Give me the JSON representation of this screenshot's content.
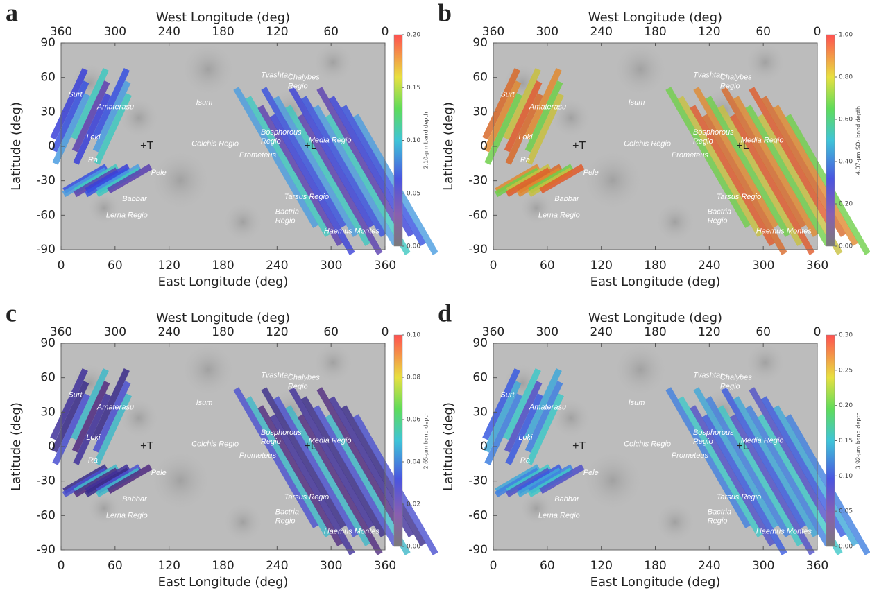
{
  "panels": [
    {
      "label": "a",
      "top_axis_label": "West Longitude (deg)",
      "bottom_axis_label": "East Longitude (deg)",
      "y_axis_label": "Latitude (deg)",
      "xlim": [
        0,
        360
      ],
      "xticks": [
        0,
        60,
        120,
        180,
        240,
        300,
        360
      ],
      "top_xlim": [
        360,
        0
      ],
      "top_xticks": [
        360,
        300,
        240,
        180,
        120,
        60,
        0
      ],
      "ylim": [
        -90,
        90
      ],
      "yticks": [
        -90,
        -60,
        -30,
        0,
        30,
        60,
        90
      ],
      "colorbar": {
        "label": "2.10-μm band depth",
        "lim": [
          0,
          0.2
        ],
        "ticks": [
          {
            "value": 0,
            "label": "0.00"
          },
          {
            "value": 0.05,
            "label": "0.05"
          },
          {
            "value": 0.1,
            "label": "0.10"
          },
          {
            "value": 0.15,
            "label": "0.15"
          },
          {
            "value": 0.2,
            "label": "0.20"
          }
        ]
      }
    },
    {
      "label": "b",
      "top_axis_label": "West Longitude (deg)",
      "bottom_axis_label": "East Longitude (deg)",
      "y_axis_label": "Latitude (deg)",
      "xlim": [
        0,
        360
      ],
      "xticks": [
        0,
        60,
        120,
        180,
        240,
        300,
        360
      ],
      "top_xlim": [
        360,
        0
      ],
      "top_xticks": [
        360,
        300,
        240,
        180,
        120,
        60,
        0
      ],
      "ylim": [
        -90,
        90
      ],
      "yticks": [
        -90,
        -60,
        -30,
        0,
        30,
        60,
        90
      ],
      "colorbar": {
        "label": "4.07-μm SO₂ band depth",
        "lim": [
          0,
          1
        ],
        "ticks": [
          {
            "value": 0,
            "label": "0.00"
          },
          {
            "value": 0.2,
            "label": "0.20"
          },
          {
            "value": 0.4,
            "label": "0.40"
          },
          {
            "value": 0.6,
            "label": "0.60"
          },
          {
            "value": 0.8,
            "label": "0.80"
          },
          {
            "value": 1,
            "label": "1.00"
          }
        ]
      }
    },
    {
      "label": "c",
      "top_axis_label": "West Longitude (deg)",
      "bottom_axis_label": "East Longitude (deg)",
      "y_axis_label": "Latitude (deg)",
      "xlim": [
        0,
        360
      ],
      "xticks": [
        0,
        60,
        120,
        180,
        240,
        300,
        360
      ],
      "top_xlim": [
        360,
        0
      ],
      "top_xticks": [
        360,
        300,
        240,
        180,
        120,
        60,
        0
      ],
      "ylim": [
        -90,
        90
      ],
      "yticks": [
        -90,
        -60,
        -30,
        0,
        30,
        60,
        90
      ],
      "colorbar": {
        "label": "2.65-μm band depth",
        "lim": [
          0,
          0.1
        ],
        "ticks": [
          {
            "value": 0,
            "label": "0.00"
          },
          {
            "value": 0.02,
            "label": "0.02"
          },
          {
            "value": 0.04,
            "label": "0.04"
          },
          {
            "value": 0.06,
            "label": "0.06"
          },
          {
            "value": 0.08,
            "label": "0.08"
          },
          {
            "value": 0.1,
            "label": "0.10"
          }
        ]
      }
    },
    {
      "label": "d",
      "top_axis_label": "West Longitude (deg)",
      "bottom_axis_label": "East Longitude (deg)",
      "y_axis_label": "Latitude (deg)",
      "xlim": [
        0,
        360
      ],
      "xticks": [
        0,
        60,
        120,
        180,
        240,
        300,
        360
      ],
      "top_xlim": [
        360,
        0
      ],
      "top_xticks": [
        360,
        300,
        240,
        180,
        120,
        60,
        0
      ],
      "ylim": [
        -90,
        90
      ],
      "yticks": [
        -90,
        -60,
        -30,
        0,
        30,
        60,
        90
      ],
      "colorbar": {
        "label": "3.92-μm band depth",
        "lim": [
          0,
          0.3
        ],
        "ticks": [
          {
            "value": 0,
            "label": "0.00"
          },
          {
            "value": 0.05,
            "label": "0.05"
          },
          {
            "value": 0.1,
            "label": "0.10"
          },
          {
            "value": 0.15,
            "label": "0.15"
          },
          {
            "value": 0.2,
            "label": "0.20"
          },
          {
            "value": 0.25,
            "label": "0.25"
          },
          {
            "value": 0.3,
            "label": "0.30"
          }
        ]
      }
    }
  ],
  "features": [
    {
      "name": [
        "Surt"
      ]
    },
    {
      "name": [
        "Amaterasu"
      ]
    },
    {
      "name": [
        "Isum"
      ]
    },
    {
      "name": [
        "Tvashtar"
      ]
    },
    {
      "name": [
        "Chalybes",
        "Regio"
      ]
    },
    {
      "name": [
        "Bosphorous",
        "Regio"
      ]
    },
    {
      "name": [
        "Media Regio"
      ]
    },
    {
      "name": [
        "Loki"
      ]
    },
    {
      "name": [
        "Ra"
      ]
    },
    {
      "name": [
        "Colchis Regio"
      ]
    },
    {
      "name": [
        "Prometeus"
      ]
    },
    {
      "name": [
        "Pele"
      ]
    },
    {
      "name": [
        "Babbar"
      ]
    },
    {
      "name": [
        "Lerna Regio"
      ]
    },
    {
      "name": [
        "Tarsus Regio"
      ]
    },
    {
      "name": [
        "Bactria",
        "Regio"
      ]
    },
    {
      "name": [
        "Haemus Montes"
      ]
    }
  ],
  "markers": [
    "+T",
    "+L"
  ]
}
